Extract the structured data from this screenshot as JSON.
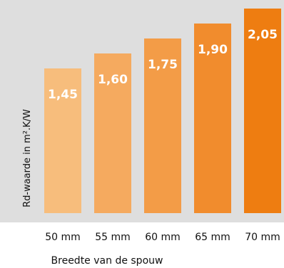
{
  "chart_data": {
    "type": "bar",
    "categories": [
      "50 mm",
      "55 mm",
      "60 mm",
      "65 mm",
      "70 mm"
    ],
    "values": [
      1.45,
      1.6,
      1.75,
      1.9,
      2.05
    ],
    "value_labels": [
      "1,45",
      "1,60",
      "1,75",
      "1,90",
      "2,05"
    ],
    "xlabel": "Breedte van de spouw",
    "ylabel": "Rd-waarde in m².K/W",
    "ylim": [
      0,
      2.05
    ],
    "grid": false,
    "legend": "none",
    "colors": {
      "panel_background": "#dedede",
      "bars": [
        "#f7bd7c",
        "#f5aa5f",
        "#f39c47",
        "#f18c2d",
        "#ee7d11"
      ],
      "value_label": "#ffffff"
    }
  }
}
